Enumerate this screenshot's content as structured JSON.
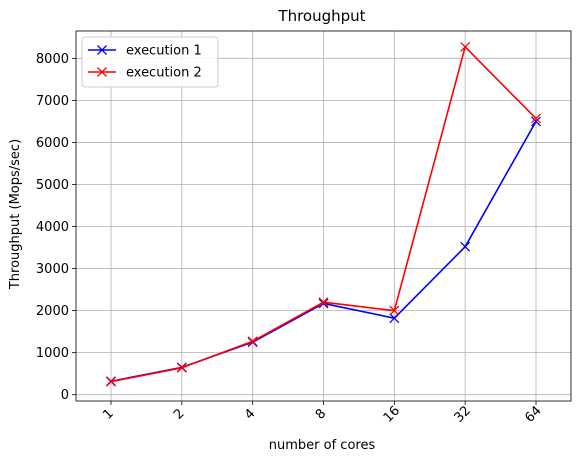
{
  "chart_data": {
    "type": "line",
    "title": "Throughput",
    "xlabel": "number of cores",
    "ylabel": "Throughput (Mops/sec)",
    "categories": [
      "1",
      "2",
      "4",
      "8",
      "16",
      "32",
      "64"
    ],
    "ylim": [
      -150,
      8650
    ],
    "yticks": [
      0,
      1000,
      2000,
      3000,
      4000,
      5000,
      6000,
      7000,
      8000
    ],
    "grid": true,
    "legend_position": "top-left",
    "marker": "x",
    "series": [
      {
        "name": "execution 1",
        "color": "#0000ff",
        "values": [
          320,
          650,
          1250,
          2170,
          1820,
          3520,
          6500
        ]
      },
      {
        "name": "execution 2",
        "color": "#ff0000",
        "values": [
          310,
          640,
          1270,
          2200,
          2000,
          8270,
          6570
        ]
      }
    ]
  }
}
